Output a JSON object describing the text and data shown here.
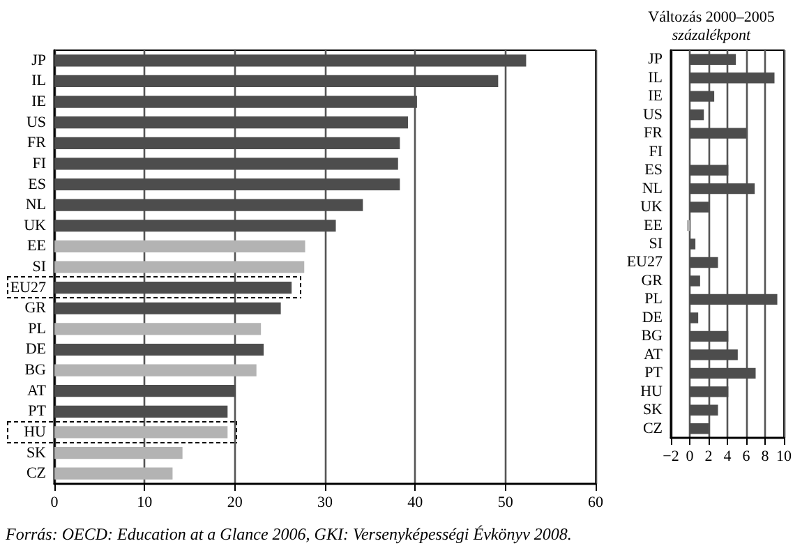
{
  "chart_data": [
    {
      "type": "bar",
      "orientation": "horizontal",
      "categories": [
        "JP",
        "IL",
        "IE",
        "US",
        "FR",
        "FI",
        "ES",
        "NL",
        "UK",
        "EE",
        "SI",
        "EU27",
        "GR",
        "PL",
        "DE",
        "BG",
        "AT",
        "PT",
        "HU",
        "SK",
        "CZ"
      ],
      "values": [
        52.3,
        49.2,
        40.2,
        39.2,
        38.3,
        38.1,
        38.3,
        34.2,
        31.2,
        27.8,
        27.7,
        26.3,
        25.1,
        22.9,
        23.2,
        22.4,
        20.1,
        19.2,
        19.2,
        14.2,
        13.1
      ],
      "colors": [
        "#4d4d4d",
        "#4d4d4d",
        "#4d4d4d",
        "#4d4d4d",
        "#4d4d4d",
        "#4d4d4d",
        "#4d4d4d",
        "#4d4d4d",
        "#4d4d4d",
        "#b3b3b3",
        "#b3b3b3",
        "#4d4d4d",
        "#4d4d4d",
        "#b3b3b3",
        "#4d4d4d",
        "#b3b3b3",
        "#4d4d4d",
        "#4d4d4d",
        "#b3b3b3",
        "#b3b3b3",
        "#b3b3b3"
      ],
      "xlim": [
        0,
        60
      ],
      "xticks": [
        0,
        10,
        20,
        30,
        40,
        50,
        60
      ],
      "grid": "x",
      "annotations": [
        "Forrás: OECD: Education at a Glance 2006, GKI: Versenyképességi Évkönyv 2008."
      ]
    },
    {
      "type": "bar",
      "orientation": "horizontal",
      "title": "Változás 2000–2005",
      "subtitle": "százalékpont",
      "categories": [
        "JP",
        "IL",
        "IE",
        "US",
        "FR",
        "FI",
        "ES",
        "NL",
        "UK",
        "EE",
        "SI",
        "EU27",
        "GR",
        "PL",
        "DE",
        "BG",
        "AT",
        "PT",
        "HU",
        "SK",
        "CZ"
      ],
      "values": [
        4.9,
        9.0,
        2.6,
        1.5,
        6.0,
        null,
        4.1,
        6.9,
        2.0,
        -0.3,
        0.6,
        3.0,
        1.1,
        9.3,
        0.9,
        4.1,
        5.1,
        7.0,
        4.1,
        3.0,
        2.0
      ],
      "colors": [
        "#4d4d4d",
        "#4d4d4d",
        "#4d4d4d",
        "#4d4d4d",
        "#4d4d4d",
        "#4d4d4d",
        "#4d4d4d",
        "#4d4d4d",
        "#4d4d4d",
        "#b3b3b3",
        "#4d4d4d",
        "#4d4d4d",
        "#4d4d4d",
        "#4d4d4d",
        "#4d4d4d",
        "#4d4d4d",
        "#4d4d4d",
        "#4d4d4d",
        "#4d4d4d",
        "#4d4d4d",
        "#4d4d4d"
      ],
      "xlim": [
        -2,
        10
      ],
      "xticks": [
        -2,
        0,
        2,
        4,
        6,
        8,
        10
      ],
      "grid": "x"
    }
  ]
}
